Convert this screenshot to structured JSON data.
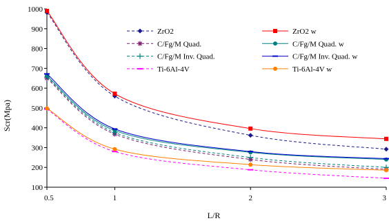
{
  "chart_data": {
    "type": "line",
    "title": "",
    "xlabel": "L/R",
    "ylabel": "Scr(Mpa)",
    "x_ticks": [
      "0.5",
      "1",
      "2",
      "3"
    ],
    "y_ticks": [
      "100",
      "200",
      "300",
      "400",
      "500",
      "600",
      "700",
      "800",
      "900",
      "1000"
    ],
    "ylim": [
      100,
      1000
    ],
    "grid": false,
    "legend_position": "upper-right, two columns",
    "x": [
      0.5,
      1,
      2,
      3
    ],
    "series": [
      {
        "name": "ZrO2",
        "values": [
          982,
          560,
          362,
          292
        ],
        "color": "#1a1a8c",
        "dash": "dashed",
        "marker": "diamond"
      },
      {
        "name": "ZrO2 w",
        "values": [
          990,
          572,
          396,
          344
        ],
        "color": "#ff0000",
        "dash": "solid",
        "marker": "square"
      },
      {
        "name": "C/Fg/M Quad.",
        "values": [
          650,
          368,
          240,
          190
        ],
        "color": "#7b1a6e",
        "dash": "dashed",
        "marker": "star"
      },
      {
        "name": "C/Fg/M Quad. w",
        "values": [
          662,
          386,
          276,
          240
        ],
        "color": "#008080",
        "dash": "solid",
        "marker": "circle"
      },
      {
        "name": "C/Fg/M Inv. Quad.",
        "values": [
          656,
          376,
          250,
          200
        ],
        "color": "#008080",
        "dash": "dashed",
        "marker": "plus"
      },
      {
        "name": "C/Fg/M Inv. Quad. w",
        "values": [
          672,
          394,
          280,
          244
        ],
        "color": "#0000cc",
        "dash": "solid",
        "marker": "dash"
      },
      {
        "name": "Ti-6Al-4V",
        "values": [
          494,
          280,
          188,
          145
        ],
        "color": "#ff00ff",
        "dash": "dashed",
        "marker": "dash"
      },
      {
        "name": "Ti-6Al-4V w",
        "values": [
          498,
          292,
          214,
          186
        ],
        "color": "#ff8000",
        "dash": "solid",
        "marker": "circle"
      }
    ]
  }
}
